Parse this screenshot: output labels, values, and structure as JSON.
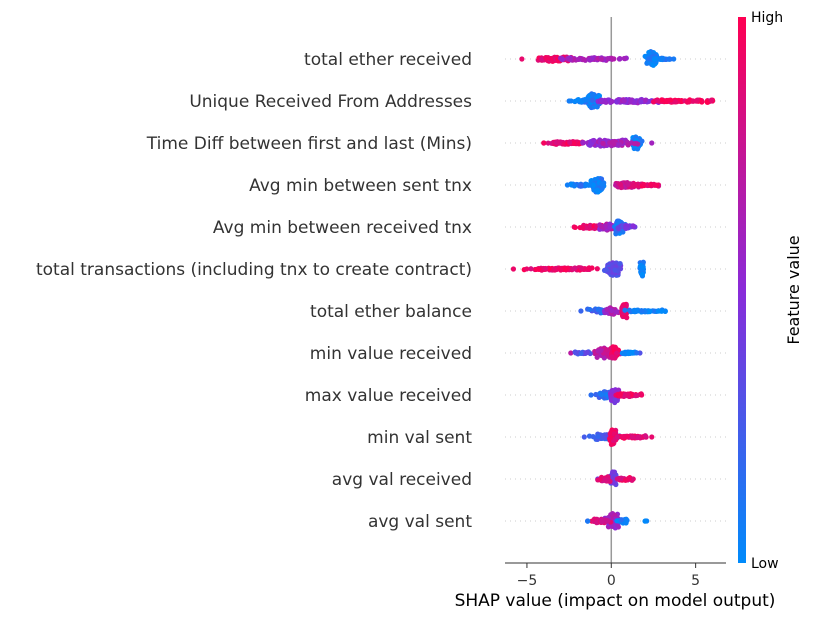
{
  "chart_data": {
    "type": "scatter",
    "subtype": "shap-beeswarm",
    "xlabel": "SHAP value (impact on model output)",
    "xlim": [
      -6.3,
      6.8
    ],
    "x_ticks": [
      {
        "value": -5,
        "label": "−5"
      },
      {
        "value": 0,
        "label": "0"
      },
      {
        "value": 5,
        "label": "5"
      }
    ],
    "zero_line": 0,
    "colorbar": {
      "title": "Feature value",
      "high_label": "High",
      "low_label": "Low",
      "low_color": "#008bfb",
      "high_color": "#ff0052"
    },
    "features": [
      {
        "name": "total ether received",
        "range": [
          -5.3,
          3.7
        ],
        "clusters": [
          {
            "center": -3.3,
            "spread": 0.8,
            "width": 0.14,
            "n": 110,
            "color": 0.9
          },
          {
            "center": -1.0,
            "spread": 1.5,
            "width": 0.08,
            "n": 70,
            "color": 0.6
          },
          {
            "center": 2.4,
            "spread": 0.25,
            "width": 0.45,
            "n": 90,
            "color": 0.05
          },
          {
            "center": 2.9,
            "spread": 0.6,
            "width": 0.06,
            "n": 30,
            "color": 0.08
          }
        ]
      },
      {
        "name": "Unique Received From Addresses",
        "range": [
          -2.5,
          6.0
        ],
        "clusters": [
          {
            "center": -1.1,
            "spread": 0.3,
            "width": 0.45,
            "n": 110,
            "color": 0.08
          },
          {
            "center": -1.7,
            "spread": 0.6,
            "width": 0.1,
            "n": 30,
            "color": 0.1
          },
          {
            "center": 1.0,
            "spread": 1.5,
            "width": 0.12,
            "n": 100,
            "color": 0.55
          },
          {
            "center": 4.2,
            "spread": 1.4,
            "width": 0.08,
            "n": 70,
            "color": 0.95
          }
        ]
      },
      {
        "name": "Time Diff between first and last (Mins)",
        "range": [
          -4.0,
          2.4
        ],
        "clusters": [
          {
            "center": -2.6,
            "spread": 1.0,
            "width": 0.1,
            "n": 70,
            "color": 0.9
          },
          {
            "center": -0.8,
            "spread": 0.7,
            "width": 0.2,
            "n": 80,
            "color": 0.55
          },
          {
            "center": 1.5,
            "spread": 0.2,
            "width": 0.45,
            "n": 80,
            "color": 0.05
          },
          {
            "center": 0.4,
            "spread": 0.8,
            "width": 0.18,
            "n": 60,
            "color": 0.6
          }
        ]
      },
      {
        "name": "Avg min between sent tnx",
        "range": [
          -2.6,
          2.8
        ],
        "clusters": [
          {
            "center": -0.8,
            "spread": 0.3,
            "width": 0.45,
            "n": 110,
            "color": 0.06
          },
          {
            "center": -1.8,
            "spread": 0.6,
            "width": 0.1,
            "n": 30,
            "color": 0.1
          },
          {
            "center": 0.8,
            "spread": 0.5,
            "width": 0.18,
            "n": 80,
            "color": 0.8
          },
          {
            "center": 2.0,
            "spread": 0.6,
            "width": 0.08,
            "n": 40,
            "color": 0.9
          }
        ]
      },
      {
        "name": "Avg min between received tnx",
        "range": [
          -2.2,
          1.4
        ],
        "clusters": [
          {
            "center": -1.0,
            "spread": 0.7,
            "width": 0.1,
            "n": 60,
            "color": 0.9
          },
          {
            "center": -0.2,
            "spread": 0.4,
            "width": 0.2,
            "n": 70,
            "color": 0.6
          },
          {
            "center": 0.5,
            "spread": 0.2,
            "width": 0.45,
            "n": 90,
            "color": 0.1
          },
          {
            "center": 0.9,
            "spread": 0.4,
            "width": 0.12,
            "n": 30,
            "color": 0.4
          }
        ]
      },
      {
        "name": "total transactions (including tnx to create contract)",
        "range": [
          -5.8,
          1.9
        ],
        "clusters": [
          {
            "center": -2.8,
            "spread": 1.5,
            "width": 0.08,
            "n": 110,
            "color": 0.92
          },
          {
            "center": 0.1,
            "spread": 0.3,
            "width": 0.42,
            "n": 130,
            "color": 0.35
          },
          {
            "center": 1.8,
            "spread": 0.1,
            "width": 0.45,
            "n": 40,
            "color": 0.05
          }
        ]
      },
      {
        "name": "total ether balance",
        "range": [
          -1.8,
          3.2
        ],
        "clusters": [
          {
            "center": -0.7,
            "spread": 0.5,
            "width": 0.15,
            "n": 40,
            "color": 0.2
          },
          {
            "center": 0.0,
            "spread": 0.3,
            "width": 0.2,
            "n": 60,
            "color": 0.6
          },
          {
            "center": 0.8,
            "spread": 0.15,
            "width": 0.45,
            "n": 60,
            "color": 0.88
          },
          {
            "center": 1.9,
            "spread": 0.8,
            "width": 0.07,
            "n": 50,
            "color": 0.04
          }
        ]
      },
      {
        "name": "min value received",
        "range": [
          -2.4,
          1.7
        ],
        "clusters": [
          {
            "center": -0.3,
            "spread": 0.5,
            "width": 0.3,
            "n": 100,
            "color": 0.7
          },
          {
            "center": 0.2,
            "spread": 0.15,
            "width": 0.45,
            "n": 60,
            "color": 0.9
          },
          {
            "center": 1.0,
            "spread": 0.5,
            "width": 0.07,
            "n": 30,
            "color": 0.05
          },
          {
            "center": -1.7,
            "spread": 0.5,
            "width": 0.08,
            "n": 20,
            "color": 0.3
          }
        ]
      },
      {
        "name": "max value received",
        "range": [
          -1.2,
          1.8
        ],
        "clusters": [
          {
            "center": -0.2,
            "spread": 0.5,
            "width": 0.22,
            "n": 80,
            "color": 0.15
          },
          {
            "center": 0.2,
            "spread": 0.2,
            "width": 0.45,
            "n": 60,
            "color": 0.5
          },
          {
            "center": 1.0,
            "spread": 0.6,
            "width": 0.1,
            "n": 50,
            "color": 0.93
          }
        ]
      },
      {
        "name": "min val sent",
        "range": [
          -1.6,
          2.4
        ],
        "clusters": [
          {
            "center": -0.3,
            "spread": 0.6,
            "width": 0.2,
            "n": 70,
            "color": 0.25
          },
          {
            "center": 0.1,
            "spread": 0.15,
            "width": 0.45,
            "n": 60,
            "color": 0.92
          },
          {
            "center": 1.3,
            "spread": 0.8,
            "width": 0.08,
            "n": 50,
            "color": 0.9
          }
        ]
      },
      {
        "name": "avg val received",
        "range": [
          -0.8,
          1.3
        ],
        "clusters": [
          {
            "center": 0.1,
            "spread": 0.15,
            "width": 0.45,
            "n": 70,
            "color": 0.4
          },
          {
            "center": -0.4,
            "spread": 0.3,
            "width": 0.15,
            "n": 30,
            "color": 0.85
          },
          {
            "center": 0.8,
            "spread": 0.4,
            "width": 0.1,
            "n": 30,
            "color": 0.9
          }
        ]
      },
      {
        "name": "avg val sent",
        "range": [
          -1.4,
          2.1
        ],
        "clusters": [
          {
            "center": 0.1,
            "spread": 0.25,
            "width": 0.45,
            "n": 90,
            "color": 0.6
          },
          {
            "center": -0.6,
            "spread": 0.4,
            "width": 0.12,
            "n": 30,
            "color": 0.85
          },
          {
            "center": 0.7,
            "spread": 0.3,
            "width": 0.15,
            "n": 25,
            "color": 0.1
          },
          {
            "center": -1.4,
            "spread": 0.05,
            "width": 0.02,
            "n": 2,
            "color": 0.05
          },
          {
            "center": 2.0,
            "spread": 0.05,
            "width": 0.02,
            "n": 2,
            "color": 0.05
          }
        ]
      }
    ]
  }
}
